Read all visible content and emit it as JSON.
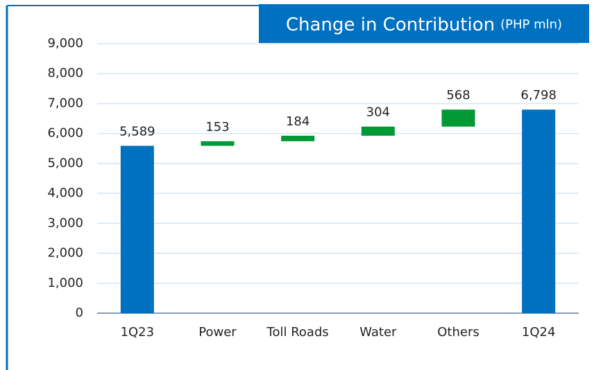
{
  "chart_data": {
    "type": "waterfall",
    "title": "Change in Contribution",
    "subtitle": "(PHP mln)",
    "categories": [
      "1Q23",
      "Power",
      "Toll Roads",
      "Water",
      "Others",
      "1Q24"
    ],
    "values": [
      5589,
      153,
      184,
      304,
      568,
      6798
    ],
    "value_labels": [
      "5,589",
      "153",
      "184",
      "304",
      "568",
      "6,798"
    ],
    "is_total": [
      true,
      false,
      false,
      false,
      false,
      true
    ],
    "total_color": "#0070c0",
    "increase_color": "#009933",
    "ylim": [
      0,
      9000
    ],
    "yticks": [
      0,
      {
        "value": 1000,
        "label": "1,000"
      },
      {
        "value": 2000,
        "label": "2,000"
      },
      {
        "value": 3000,
        "label": "3,000"
      },
      {
        "value": 4000,
        "label": "4,000"
      },
      {
        "value": 5000,
        "label": "5,000"
      },
      {
        "value": 6000,
        "label": "6,000"
      },
      {
        "value": 7000,
        "label": "7,000"
      },
      {
        "value": 8000,
        "label": "8,000"
      },
      {
        "value": 9000,
        "label": "9,000"
      }
    ],
    "grid": true
  }
}
